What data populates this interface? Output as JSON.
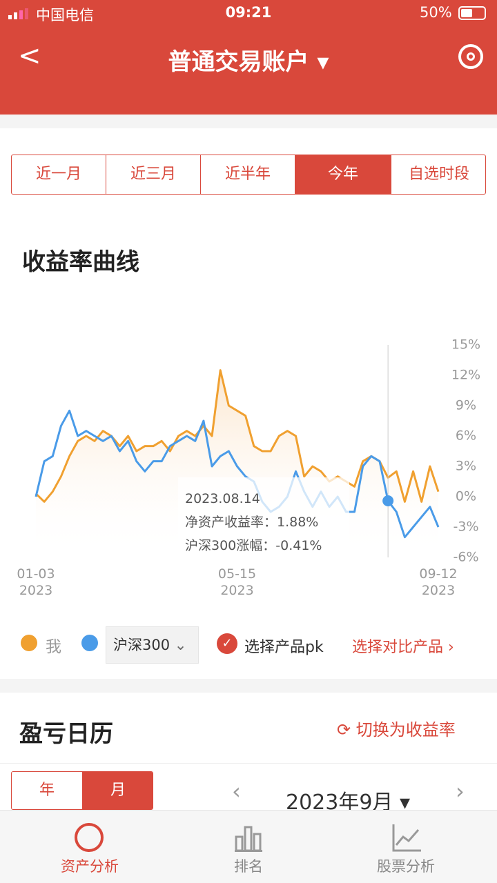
{
  "status": {
    "carrier": "中国电信",
    "time": "09:21",
    "battery": "50%"
  },
  "header": {
    "title": "普通交易账户"
  },
  "tabs": [
    "近一月",
    "近三月",
    "近半年",
    "今年",
    "自选时段"
  ],
  "section_title": "收益率曲线",
  "chart_data": {
    "type": "line",
    "categories": [
      "01-03 2023",
      null,
      null,
      null,
      null,
      null,
      null,
      null,
      null,
      null,
      null,
      null,
      null,
      null,
      null,
      null,
      null,
      null,
      null,
      null,
      null,
      null,
      null,
      null,
      "05-15 2023",
      null,
      null,
      null,
      null,
      null,
      null,
      null,
      null,
      null,
      null,
      null,
      null,
      null,
      null,
      null,
      null,
      null,
      null,
      null,
      null,
      null,
      null,
      null,
      "09-12 2023"
    ],
    "series": [
      {
        "name": "我",
        "color": "#f0a030",
        "values": [
          0.3,
          -0.5,
          0.5,
          2,
          4,
          5.5,
          6,
          5.5,
          6.5,
          6,
          5,
          6,
          4.5,
          5,
          5,
          5.5,
          4.5,
          6,
          6.5,
          6,
          7,
          6,
          12.5,
          9,
          8.5,
          8,
          5,
          4.5,
          4.5,
          6,
          6.5,
          6,
          2,
          3,
          2.5,
          1.5,
          2,
          1.5,
          1,
          3.5,
          4,
          3.5,
          1.88,
          2.5,
          -0.5,
          2.5,
          -0.5,
          3,
          0.5
        ]
      },
      {
        "name": "沪深300",
        "color": "#4a9be8",
        "values": [
          0,
          3.5,
          4,
          7,
          8.5,
          6,
          6.5,
          6,
          5.5,
          6,
          4.5,
          5.5,
          3.5,
          2.5,
          3.5,
          3.5,
          5,
          5.5,
          6,
          5.5,
          7.5,
          3,
          4,
          4.5,
          3,
          2,
          1.5,
          -0.5,
          -1.5,
          -1,
          0,
          2.5,
          0.5,
          -1,
          0.5,
          -1,
          0,
          -1.5,
          -1.5,
          3,
          4,
          3.5,
          -0.41,
          -1.5,
          -4,
          -3,
          -2,
          -1,
          -3
        ]
      }
    ],
    "ylim": [
      -6,
      15
    ],
    "yticks": [
      {
        "value": 15,
        "label": "15%"
      },
      {
        "value": 12,
        "label": "12%"
      },
      {
        "value": 9,
        "label": "9%"
      },
      {
        "value": 6,
        "label": "6%"
      },
      {
        "value": 3,
        "label": "3%"
      },
      {
        "value": 0,
        "label": "0%"
      },
      {
        "value": -3,
        "label": "-3%"
      },
      {
        "value": -6,
        "label": "-6%"
      }
    ],
    "tooltip": {
      "date": "2023.08.14",
      "lines": [
        "净资产收益率：1.88%",
        "沪深300涨幅：-0.41%"
      ]
    }
  },
  "legend_actions": {
    "pk": "选择产品pk",
    "compare": "选择对比产品"
  },
  "calendar": {
    "title": "盈亏日历",
    "switch": "切换为收益率",
    "modes": [
      "年",
      "月"
    ],
    "month": "2023年9月"
  },
  "bottom_nav": [
    "资产分析",
    "排名",
    "股票分析"
  ]
}
